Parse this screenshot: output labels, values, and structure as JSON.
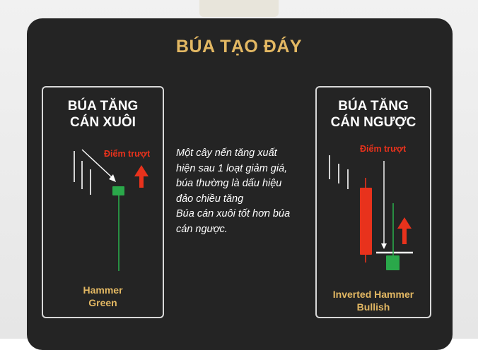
{
  "title": "BÚA TẠO ĐÁY",
  "description": "Một cây nến tăng xuất\nhiện sau 1 loạt giảm giá,\nbúa thường là dấu hiệu\nđảo chiều tăng\nBúa cán xuôi tốt hơn búa\ncán ngược.",
  "left_card": {
    "title": "BÚA TĂNG\nCÁN XUÔI",
    "slip_label": "Điểm trượt",
    "caption": "Hammer\nGreen"
  },
  "right_card": {
    "title": "BÚA TĂNG\nCÁN NGƯỢC",
    "slip_label": "Điểm trượt",
    "caption": "Inverted Hammer\nBullish"
  },
  "colors": {
    "panel": "#242424",
    "accent_gold": "#e3b863",
    "bull_green": "#2aa84a",
    "bear_red": "#e8321c",
    "slip_red": "#e8321c",
    "line_white": "#ffffff"
  },
  "icons": [
    "arrow-up-icon",
    "arrow-down-icon"
  ]
}
